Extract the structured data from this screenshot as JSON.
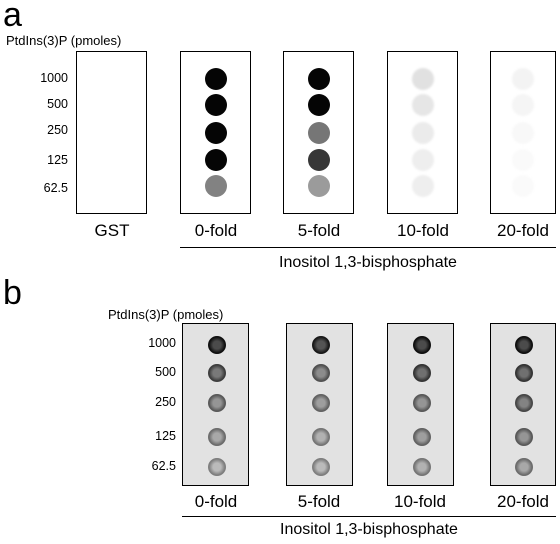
{
  "panel_a": {
    "letter": "a",
    "unit_label": "PtdIns(3)P (pmoles)",
    "amounts": [
      "1000",
      "500",
      "250",
      "125",
      "62.5"
    ],
    "lanes": [
      {
        "label": "GST",
        "intensity": [
          0.0,
          0.0,
          0.0,
          0.0,
          0.0
        ]
      },
      {
        "label": "0-fold",
        "intensity": [
          1.0,
          1.0,
          1.0,
          1.0,
          0.5
        ]
      },
      {
        "label": "5-fold",
        "intensity": [
          1.0,
          1.0,
          0.55,
          0.8,
          0.4
        ]
      },
      {
        "label": "10-fold",
        "intensity": [
          0.12,
          0.1,
          0.08,
          0.07,
          0.07
        ]
      },
      {
        "label": "20-fold",
        "intensity": [
          0.05,
          0.04,
          0.03,
          0.02,
          0.02
        ]
      }
    ],
    "group_label": "Inositol 1,3-bisphosphate"
  },
  "panel_b": {
    "letter": "b",
    "unit_label": "PtdIns(3)P (pmoles)",
    "amounts": [
      "1000",
      "500",
      "250",
      "125",
      "62.5"
    ],
    "lanes": [
      {
        "label": "0-fold",
        "intensity": [
          1.0,
          0.75,
          0.6,
          0.5,
          0.4
        ]
      },
      {
        "label": "5-fold",
        "intensity": [
          0.95,
          0.65,
          0.55,
          0.45,
          0.4
        ]
      },
      {
        "label": "10-fold",
        "intensity": [
          1.0,
          0.8,
          0.6,
          0.55,
          0.45
        ]
      },
      {
        "label": "20-fold",
        "intensity": [
          1.0,
          0.8,
          0.7,
          0.6,
          0.5
        ]
      }
    ],
    "group_label": "Inositol 1,3-bisphosphate"
  }
}
